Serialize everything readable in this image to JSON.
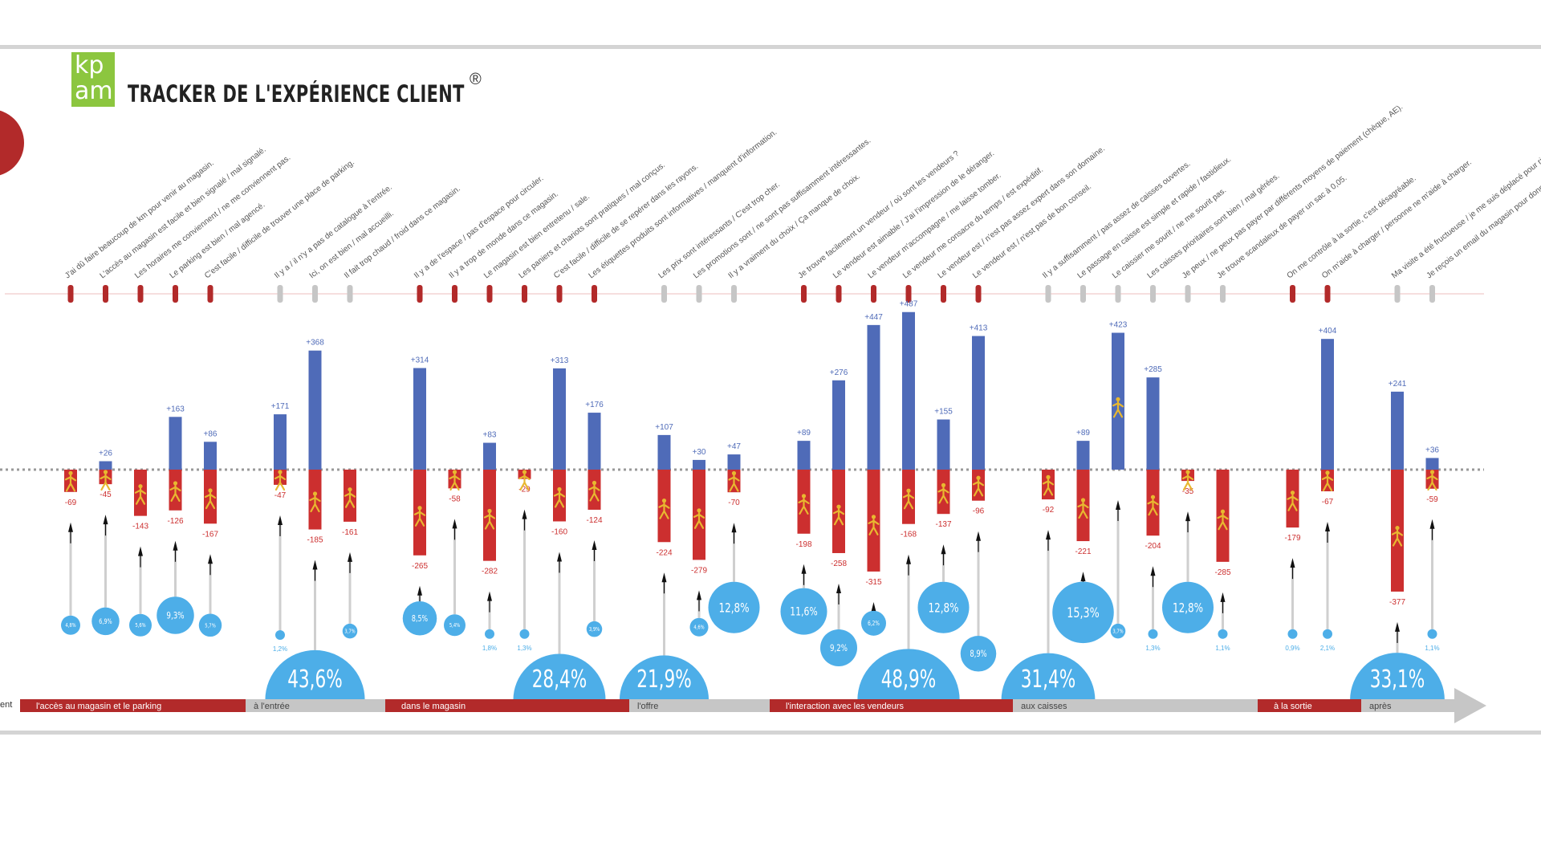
{
  "header": {
    "logo_text_top": "kp",
    "logo_text_bottom": "am",
    "title": "TRACKER DE L'EXPÉRIENCE CLIENT",
    "registered_mark": "®",
    "cut_label": "ent"
  },
  "colors": {
    "positive": "#4f6bb8",
    "negative": "#cc2f2f",
    "bubble": "#4daee8",
    "phase_red": "#b22a2a",
    "phase_grey": "#c6c6c6",
    "figure": "#e8b830",
    "logo": "#8cc63f"
  },
  "chart_data": {
    "type": "bar",
    "baseline": 0,
    "phases": [
      {
        "label": "l'accès au magasin et le parking",
        "color": "red"
      },
      {
        "label": "à l'entrée",
        "color": "grey"
      },
      {
        "label": "dans le magasin",
        "color": "red"
      },
      {
        "label": "l'offre",
        "color": "grey"
      },
      {
        "label": "l'interaction avec les vendeurs",
        "color": "red"
      },
      {
        "label": "aux caisses",
        "color": "grey"
      },
      {
        "label": "à la sortie",
        "color": "red"
      },
      {
        "label": "après",
        "color": "grey"
      }
    ],
    "items": [
      {
        "phase": 0,
        "label": "J'ai dû faire beaucoup de km pour venir au magasin.",
        "positive": null,
        "negative": -69,
        "share": "4,8%"
      },
      {
        "phase": 0,
        "label": "L'accès au magasin est facile et bien signalé / mal signalé.",
        "positive": 26,
        "negative": -45,
        "share": "6,9%"
      },
      {
        "phase": 0,
        "label": "Les horaires me conviennent / ne me conviennent pas.",
        "positive": null,
        "negative": -143,
        "share": "5,6%"
      },
      {
        "phase": 0,
        "label": "Le parking est bien / mal agencé.",
        "positive": 163,
        "negative": -126,
        "share": "9,3%"
      },
      {
        "phase": 0,
        "label": "C'est facile / difficile de trouver une place de parking.",
        "positive": 86,
        "negative": -167,
        "share": "5,7%"
      },
      {
        "phase": 1,
        "label": "Il y a / il n'y a pas de catalogue à l'entrée.",
        "positive": 171,
        "negative": -47,
        "share": "1,2%"
      },
      {
        "phase": 1,
        "label": "Ici, on est bien / mal accueilli.",
        "positive": 368,
        "negative": -185,
        "share": "43,6%"
      },
      {
        "phase": 1,
        "label": "Il fait trop chaud / froid dans ce magasin.",
        "positive": null,
        "negative": -161,
        "share": "3,7%"
      },
      {
        "phase": 2,
        "label": "Il y a de l'espace / pas d'espace pour circuler.",
        "positive": 314,
        "negative": -265,
        "share": "8,5%"
      },
      {
        "phase": 2,
        "label": "Il y a trop de monde dans ce magasin.",
        "positive": null,
        "negative": -58,
        "share": "5,4%"
      },
      {
        "phase": 2,
        "label": "Le magasin est bien entretenu / sale.",
        "positive": 83,
        "negative": -282,
        "share": "1,8%"
      },
      {
        "phase": 2,
        "label": "Les paniers et chariots sont pratiques / mal conçus.",
        "positive": null,
        "negative": -29,
        "share": "1,3%"
      },
      {
        "phase": 2,
        "label": "C'est facile / difficile de se repérer dans les rayons.",
        "positive": 313,
        "negative": -160,
        "share": "28,4%"
      },
      {
        "phase": 2,
        "label": "Les étiquettes produits sont informatives / manquent d'information.",
        "positive": 176,
        "negative": -124,
        "share": "3,9%"
      },
      {
        "phase": 3,
        "label": "Les prix sont intéressants / C'est trop cher.",
        "positive": 107,
        "negative": -224,
        "share": "21,9%"
      },
      {
        "phase": 3,
        "label": "Les promotions sont / ne sont pas suffisamment intéressantes.",
        "positive": 30,
        "negative": -279,
        "share": "4,6%"
      },
      {
        "phase": 3,
        "label": "Il y a vraiment du choix / Ça manque de choix.",
        "positive": 47,
        "negative": -70,
        "share": "12,8%"
      },
      {
        "phase": 4,
        "label": "Je trouve facilement un vendeur / où sont les vendeurs ?",
        "positive": 89,
        "negative": -198,
        "share": "11,6%"
      },
      {
        "phase": 4,
        "label": "Le vendeur est aimable / J'ai l'impression de le déranger.",
        "positive": 276,
        "negative": -258,
        "share": "9,2%"
      },
      {
        "phase": 4,
        "label": "Le vendeur m'accompagne / me laisse tomber.",
        "positive": 447,
        "negative": -315,
        "share": "6,2%"
      },
      {
        "phase": 4,
        "label": "Le vendeur me consacre du temps / est expéditif.",
        "positive": 487,
        "negative": -168,
        "share": "48,9%"
      },
      {
        "phase": 4,
        "label": "Le vendeur est / n'est pas assez expert dans son domaine.",
        "positive": 155,
        "negative": -137,
        "share": "12,8%"
      },
      {
        "phase": 4,
        "label": "Le vendeur est / n'est pas de bon conseil.",
        "positive": 413,
        "negative": -96,
        "share": "8,9%"
      },
      {
        "phase": 5,
        "label": "Il y a suffisamment / pas assez de caisses ouvertes.",
        "positive": null,
        "negative": -92,
        "share": "31,4%"
      },
      {
        "phase": 5,
        "label": "Le passage en caisse est simple et rapide / fastidieux.",
        "positive": 89,
        "negative": -221,
        "share": "15,3%"
      },
      {
        "phase": 5,
        "label": "Le caissier me sourit / ne me sourit pas.",
        "positive": 423,
        "negative": null,
        "share": "3,7%"
      },
      {
        "phase": 5,
        "label": "Les caisses prioritaires sont bien / mal gérées.",
        "positive": 285,
        "negative": -204,
        "share": "1,3%"
      },
      {
        "phase": 5,
        "label": "Je peux / ne peux pas payer par différents moyens de paiement (chèque, AE).",
        "positive": null,
        "negative": -35,
        "share": "12,8%"
      },
      {
        "phase": 5,
        "label": "Je trouve scandaleux de payer un sac à 0,05.",
        "positive": null,
        "negative": -285,
        "share": "1,1%"
      },
      {
        "phase": 6,
        "label": "On me contrôle à la sortie, c'est désagréable.",
        "positive": null,
        "negative": -179,
        "share": "0,9%"
      },
      {
        "phase": 6,
        "label": "On m'aide à charger / personne ne m'aide à charger.",
        "positive": 404,
        "negative": -67,
        "share": "2,1%"
      },
      {
        "phase": 7,
        "label": "Ma visite a été fructueuse / je me suis déplacé pour rien.",
        "positive": 241,
        "negative": -377,
        "share": "33,1%"
      },
      {
        "phase": 7,
        "label": "Je reçois un email du magasin pour donner mon avis / je le fais !",
        "positive": 36,
        "negative": -59,
        "share": "1,1%"
      }
    ]
  }
}
